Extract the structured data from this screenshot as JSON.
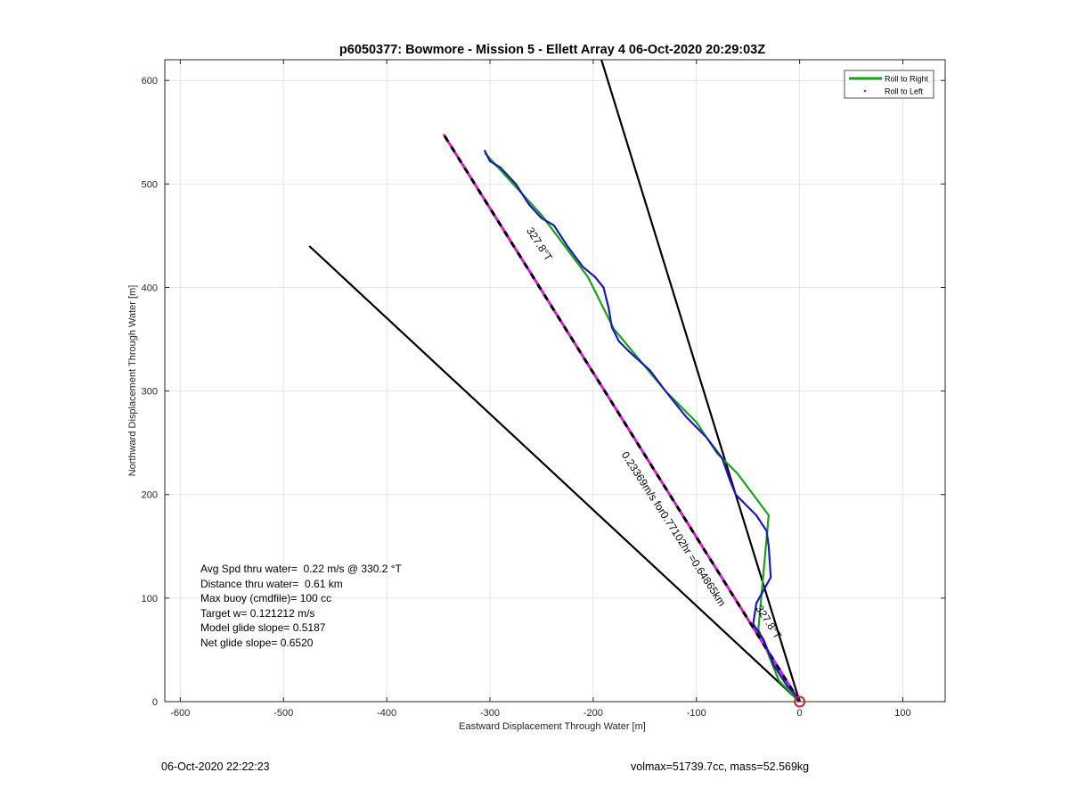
{
  "chart_data": {
    "type": "line",
    "title": "p6050377: Bowmore - Mission 5 - Ellett Array 4 06-Oct-2020 20:29:03Z",
    "xlabel": "Eastward Displacement Through Water [m]",
    "ylabel": "Northward Displacement Through Water [m]",
    "xlim": [
      -615,
      141
    ],
    "ylim": [
      0,
      620
    ],
    "xticks": [
      -600,
      -500,
      -400,
      -300,
      -200,
      -100,
      0,
      100
    ],
    "yticks": [
      0,
      100,
      200,
      300,
      400,
      500,
      600
    ],
    "grid": true,
    "legend": {
      "placement": "top-right",
      "entries": [
        {
          "label": "Roll to Right",
          "color": "#1aa01a",
          "style": "line"
        },
        {
          "label": "Roll to Left",
          "color": "#e0201f",
          "style": "dot"
        }
      ]
    },
    "series": [
      {
        "name": "Roll to Right",
        "color": "#1aa01a",
        "x": [
          0,
          -20,
          -40,
          -30,
          -60,
          -80,
          -100,
          -130,
          -180,
          -205,
          -250,
          -305
        ],
        "y": [
          0,
          20,
          70,
          180,
          220,
          240,
          270,
          300,
          360,
          410,
          470,
          530
        ]
      },
      {
        "color": "#1a1ab4",
        "x": [
          0,
          -12,
          -25,
          -35,
          -45,
          -42,
          -28,
          -30,
          -32,
          -42,
          -52,
          -62,
          -68,
          -75,
          -90,
          -110,
          -130,
          -145,
          -165,
          -175,
          -182,
          -185,
          -190,
          -198,
          -210,
          -225,
          -238,
          -250,
          -262,
          -275,
          -290,
          -300,
          -305
        ],
        "y": [
          2,
          15,
          35,
          60,
          75,
          95,
          120,
          150,
          165,
          180,
          190,
          200,
          215,
          235,
          255,
          275,
          300,
          320,
          338,
          348,
          362,
          380,
          400,
          410,
          420,
          440,
          460,
          467,
          480,
          500,
          516,
          522,
          532
        ]
      },
      {
        "color": "#000000",
        "x": [
          0,
          -475
        ],
        "y": [
          0,
          440
        ]
      },
      {
        "color": "#000000",
        "x": [
          0,
          -192
        ],
        "y": [
          0,
          620
        ]
      },
      {
        "color": "#000000",
        "style": "magenta-dashed",
        "x": [
          0,
          -345
        ],
        "y": [
          0,
          548
        ]
      }
    ],
    "origin_marker": {
      "x": 0,
      "y": 0,
      "color": "#e0201f"
    },
    "annotations": [
      {
        "text": "327.8°T",
        "x": -255,
        "y": 440,
        "rotate": 57
      },
      {
        "text": "0.23369m/s for0.77102hr =0.64865km",
        "x": -125,
        "y": 165,
        "rotate": 57
      },
      {
        "text": "327.8°T",
        "x": -33,
        "y": 75,
        "rotate": 57
      }
    ]
  },
  "stats": {
    "avg_spd": "Avg Spd thru water=  0.22 m/s @ 330.2 °T",
    "distance": "Distance thru water=  0.61 km",
    "max_buoy": "Max buoy (cmdfile)= 100 cc",
    "target_w": "Target w= 0.121212 m/s",
    "model_glide": "Model glide slope= 0.5187",
    "net_glide": "Net glide slope= 0.6520"
  },
  "footer": {
    "timestamp": "06-Oct-2020 22:22:23",
    "volmax_mass": "volmax=51739.7cc, mass=52.569kg"
  }
}
